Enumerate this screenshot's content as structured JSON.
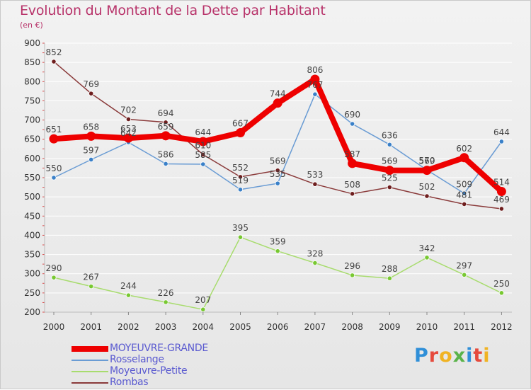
{
  "title": "Evolution du Montant de la Dette par Habitant",
  "unit_label": "(en €)",
  "brand": {
    "text": "Proxiti",
    "colors": [
      "#2f8fd8",
      "#e64a3c",
      "#f0b323",
      "#5ab34a",
      "#2f8fd8",
      "#e64a3c",
      "#f0b323"
    ]
  },
  "chart_data": {
    "type": "line",
    "title": "Evolution du Montant de la Dette par Habitant",
    "ylabel": "(en €)",
    "xlabel": "",
    "x": [
      "2000",
      "2001",
      "2002",
      "2003",
      "2004",
      "2005",
      "2006",
      "2007",
      "2008",
      "2009",
      "2010",
      "2011",
      "2012"
    ],
    "ylim": [
      200,
      900
    ],
    "yticks": [
      "200",
      "250",
      "300",
      "350",
      "400",
      "450",
      "500",
      "550",
      "600",
      "650",
      "700",
      "750",
      "800",
      "850",
      "900"
    ],
    "grid": "horizontal",
    "legend_position": "bottom-left",
    "series": [
      {
        "name": "MOYEUVRE-GRANDE",
        "color": "#ee0000",
        "emphasis": true,
        "values": [
          651,
          658,
          653,
          659,
          644,
          667,
          744,
          806,
          587,
          569,
          569,
          602,
          514
        ],
        "labels": [
          "651",
          "658",
          "653",
          "659",
          "644",
          "667",
          "744",
          "806",
          "587",
          "569",
          "569",
          "602",
          "514"
        ]
      },
      {
        "name": "Rosselange",
        "color": "#6a9cd4",
        "marker": "#3a80c8",
        "values": [
          550,
          597,
          642,
          586,
          585,
          519,
          535,
          767,
          690,
          636,
          570,
          509,
          644
        ],
        "labels": [
          "550",
          "597",
          "642",
          "586",
          "585",
          "519",
          "535",
          "767",
          "690",
          "636",
          "570",
          "509",
          "644"
        ]
      },
      {
        "name": "Moyeuvre-Petite",
        "color": "#a8dc6e",
        "marker": "#78c832",
        "values": [
          290,
          267,
          244,
          226,
          207,
          395,
          359,
          328,
          296,
          288,
          342,
          297,
          250
        ],
        "labels": [
          "290",
          "267",
          "244",
          "226",
          "207",
          "395",
          "359",
          "328",
          "296",
          "288",
          "342",
          "297",
          "250"
        ]
      },
      {
        "name": "Rombas",
        "color": "#8a3a3a",
        "marker": "#6e1e1e",
        "values": [
          852,
          769,
          702,
          694,
          610,
          552,
          569,
          533,
          508,
          525,
          502,
          481,
          469
        ],
        "labels": [
          "852",
          "769",
          "702",
          "694",
          "610",
          "552",
          "569",
          "533",
          "508",
          "525",
          "502",
          "481",
          "469"
        ]
      }
    ]
  }
}
